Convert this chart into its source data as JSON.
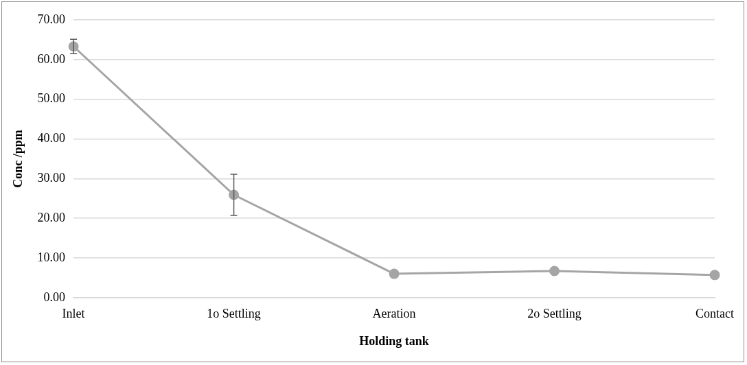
{
  "chart_data": {
    "type": "line",
    "xlabel": "Holding tank",
    "ylabel": "Conc /ppm",
    "categories": [
      "Inlet",
      "1o Settling",
      "Aeration",
      "2o Settling",
      "Contact"
    ],
    "series": [
      {
        "color": "#a5a5a5",
        "values": [
          63.3,
          25.9,
          6.0,
          6.7,
          5.7
        ],
        "errors": [
          1.8,
          5.2,
          null,
          null,
          null
        ]
      }
    ],
    "ylim": [
      0,
      70
    ],
    "yticks": [
      {
        "value": 0,
        "label": "0.00"
      },
      {
        "value": 10,
        "label": "10.00"
      },
      {
        "value": 20,
        "label": "20.00"
      },
      {
        "value": 30,
        "label": "30.00"
      },
      {
        "value": 40,
        "label": "40.00"
      },
      {
        "value": 50,
        "label": "50.00"
      },
      {
        "value": 60,
        "label": "60.00"
      },
      {
        "value": 70,
        "label": "70.00"
      }
    ],
    "grid": "y",
    "legend": false,
    "marker": "circle",
    "line_style": "solid"
  }
}
